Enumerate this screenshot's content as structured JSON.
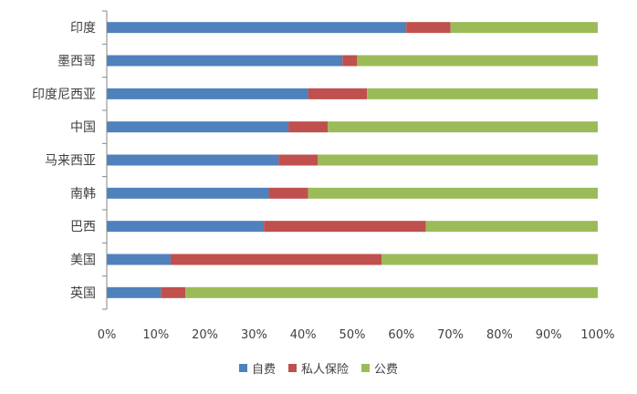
{
  "chart_data": {
    "type": "bar",
    "orientation": "horizontal",
    "stacked": "percent",
    "title": "",
    "xlabel": "",
    "ylabel": "",
    "categories": [
      "印度",
      "墨西哥",
      "印度尼西亚",
      "中国",
      "马来西亚",
      "南韩",
      "巴西",
      "美国",
      "英国"
    ],
    "series": [
      {
        "name": "自费",
        "color": "#4F81BD",
        "values": [
          61,
          48,
          41,
          37,
          35,
          33,
          32,
          13,
          11
        ]
      },
      {
        "name": "私人保险",
        "color": "#C0504D",
        "values": [
          9,
          3,
          12,
          8,
          8,
          8,
          33,
          43,
          5
        ]
      },
      {
        "name": "公费",
        "color": "#9BBB59",
        "values": [
          30,
          49,
          47,
          55,
          57,
          59,
          35,
          44,
          84
        ]
      }
    ],
    "xlim": [
      0,
      100
    ],
    "xticks": [
      "0%",
      "10%",
      "20%",
      "30%",
      "40%",
      "50%",
      "60%",
      "70%",
      "80%",
      "90%",
      "100%"
    ],
    "grid": false,
    "legend_position": "bottom"
  }
}
